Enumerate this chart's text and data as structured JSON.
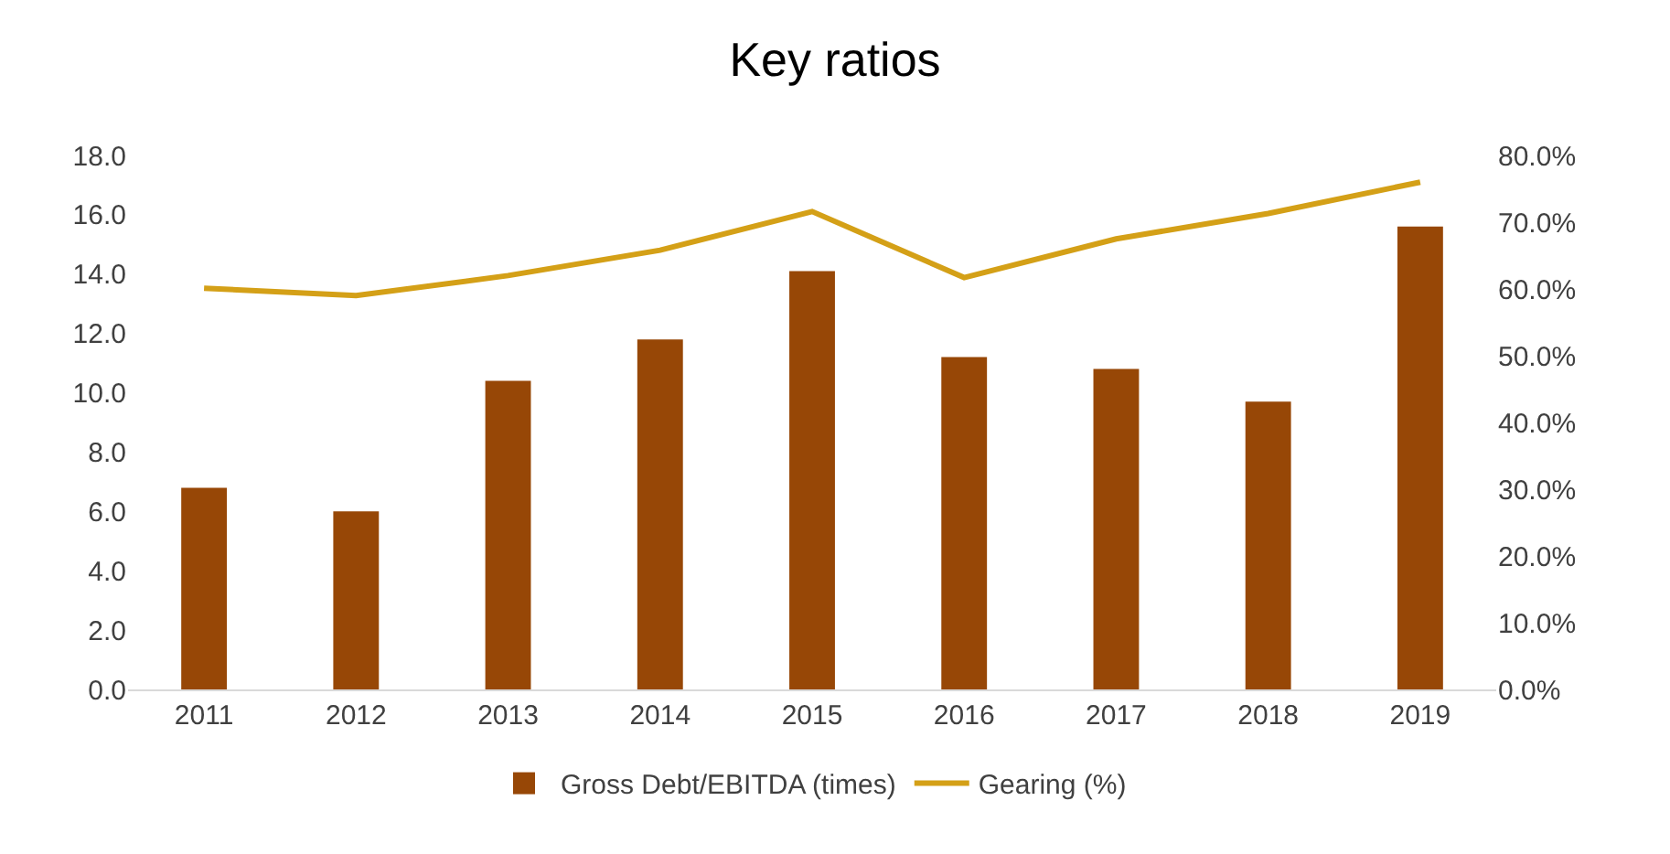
{
  "chart_data": {
    "type": "bar",
    "title": "Key ratios",
    "categories": [
      "2011",
      "2012",
      "2013",
      "2014",
      "2015",
      "2016",
      "2017",
      "2018",
      "2019"
    ],
    "series": [
      {
        "name": "Gross Debt/EBITDA (times)",
        "color": "#974706",
        "values": [
          6.8,
          6.0,
          10.4,
          11.8,
          14.1,
          11.2,
          10.8,
          9.7,
          15.6
        ]
      },
      {
        "name": "Gearing (%)",
        "type": "line",
        "axis": "y2",
        "color": "#d4a017",
        "values": [
          60.1,
          59.0,
          62.0,
          65.8,
          71.6,
          61.7,
          67.5,
          71.3,
          76.0
        ]
      }
    ],
    "ylim": [
      0,
      18
    ],
    "yticks": [
      {
        "value": 0,
        "label": "0.0"
      },
      {
        "value": 2,
        "label": "2.0"
      },
      {
        "value": 4,
        "label": "4.0"
      },
      {
        "value": 6,
        "label": "6.0"
      },
      {
        "value": 8,
        "label": "8.0"
      },
      {
        "value": 10,
        "label": "10.0"
      },
      {
        "value": 12,
        "label": "12.0"
      },
      {
        "value": 14,
        "label": "14.0"
      },
      {
        "value": 16,
        "label": "16.0"
      },
      {
        "value": 18,
        "label": "18.0"
      }
    ],
    "y2lim": [
      0,
      80
    ],
    "y2ticks": [
      {
        "value": 0,
        "label": "0.0%"
      },
      {
        "value": 10,
        "label": "10.0%"
      },
      {
        "value": 20,
        "label": "20.0%"
      },
      {
        "value": 30,
        "label": "30.0%"
      },
      {
        "value": 40,
        "label": "40.0%"
      },
      {
        "value": 50,
        "label": "50.0%"
      },
      {
        "value": 60,
        "label": "60.0%"
      },
      {
        "value": 70,
        "label": "70.0%"
      },
      {
        "value": 80,
        "label": "80.0%"
      }
    ],
    "grid": false,
    "legend": "bottom",
    "marker": "none",
    "line_style": "solid"
  }
}
